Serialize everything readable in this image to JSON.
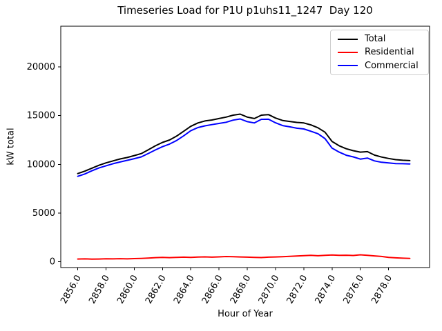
{
  "chart_data": {
    "type": "line",
    "title": "Timeseries Load for P1U p1uhs11_1247  Day 120",
    "xlabel": "Hour of Year",
    "ylabel": "kW total",
    "xlim": [
      2854.8,
      2880.9
    ],
    "ylim": [
      -600,
      24180
    ],
    "grid": false,
    "legend_position": "upper right",
    "x_ticks": {
      "values": [
        2856,
        2858,
        2860,
        2862,
        2864,
        2866,
        2868,
        2870,
        2872,
        2874,
        2876,
        2878
      ],
      "labels": [
        "2856.0",
        "2858.0",
        "2860.0",
        "2862.0",
        "2864.0",
        "2866.0",
        "2868.0",
        "2870.0",
        "2872.0",
        "2874.0",
        "2876.0",
        "2878.0"
      ]
    },
    "y_ticks": {
      "values": [
        0,
        5000,
        10000,
        15000,
        20000
      ],
      "labels": [
        "0",
        "5000",
        "10000",
        "15000",
        "20000"
      ]
    },
    "x": [
      2856.0,
      2856.5,
      2857.0,
      2857.5,
      2858.0,
      2858.5,
      2859.0,
      2859.5,
      2860.0,
      2860.5,
      2861.0,
      2861.5,
      2862.0,
      2862.5,
      2863.0,
      2863.5,
      2864.0,
      2864.5,
      2865.0,
      2865.5,
      2866.0,
      2866.5,
      2867.0,
      2867.5,
      2868.0,
      2868.5,
      2869.0,
      2869.5,
      2870.0,
      2870.5,
      2871.0,
      2871.5,
      2872.0,
      2872.5,
      2873.0,
      2873.5,
      2874.0,
      2874.5,
      2875.0,
      2875.5,
      2876.0,
      2876.5,
      2877.0,
      2877.5,
      2878.0,
      2878.5,
      2879.0,
      2879.5
    ],
    "series": [
      {
        "name": "Total",
        "color": "#000000",
        "values": [
          9050,
          9300,
          9600,
          9900,
          10150,
          10350,
          10550,
          10700,
          10900,
          11100,
          11500,
          11900,
          12250,
          12500,
          12900,
          13400,
          13900,
          14250,
          14450,
          14550,
          14700,
          14850,
          15050,
          15150,
          14850,
          14700,
          15050,
          15100,
          14750,
          14500,
          14400,
          14300,
          14250,
          14050,
          13750,
          13300,
          12350,
          11900,
          11600,
          11400,
          11250,
          11300,
          10950,
          10750,
          10600,
          10480,
          10420,
          10380
        ]
      },
      {
        "name": "Residential",
        "color": "#ff0000",
        "values": [
          280,
          290,
          270,
          280,
          300,
          290,
          310,
          290,
          320,
          340,
          380,
          420,
          440,
          420,
          450,
          470,
          450,
          480,
          500,
          470,
          500,
          530,
          510,
          490,
          470,
          450,
          430,
          470,
          490,
          520,
          550,
          590,
          620,
          650,
          610,
          660,
          690,
          650,
          670,
          640,
          710,
          660,
          600,
          540,
          450,
          400,
          360,
          340
        ]
      },
      {
        "name": "Commercial",
        "color": "#0000ff",
        "values": [
          8770,
          9010,
          9330,
          9620,
          9850,
          10060,
          10240,
          10410,
          10580,
          10760,
          11120,
          11480,
          11810,
          12080,
          12450,
          12930,
          13450,
          13770,
          13950,
          14080,
          14200,
          14320,
          14540,
          14660,
          14380,
          14250,
          14620,
          14630,
          14260,
          13980,
          13850,
          13710,
          13630,
          13400,
          13140,
          12640,
          11660,
          11250,
          10930,
          10760,
          10540,
          10640,
          10350,
          10210,
          10150,
          10080,
          10060,
          10040
        ]
      }
    ]
  }
}
